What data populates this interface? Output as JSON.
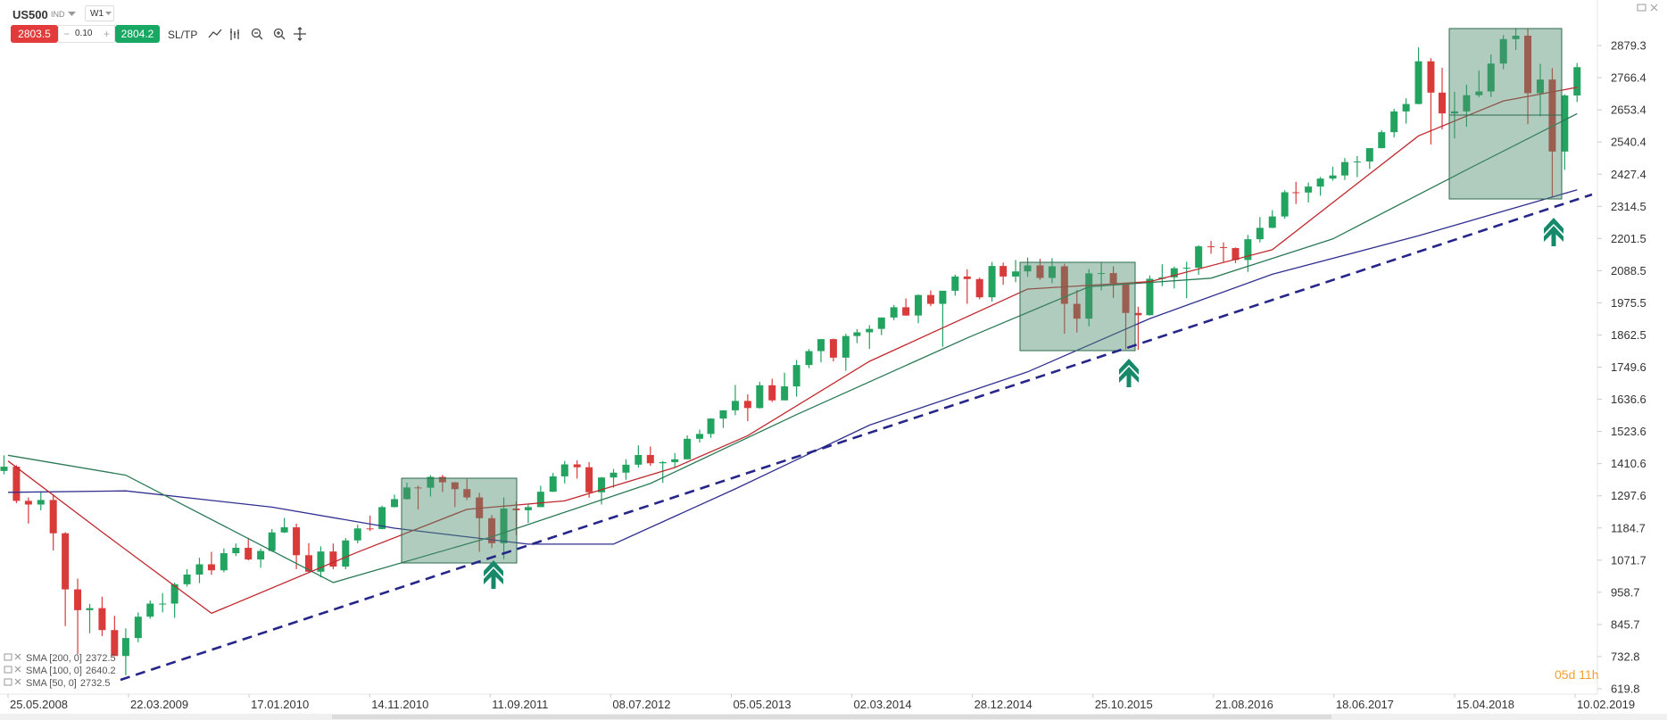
{
  "toolbar": {
    "symbol": "US500",
    "market": "IND",
    "timeframe": "W1",
    "sell": 2803.5,
    "volume": "0.10",
    "buy": 2804.2,
    "sltp": "SL/TP"
  },
  "countdown": "05d 11h",
  "chart_data": {
    "type": "candlestick",
    "log_scale": false,
    "grid": false,
    "up_color": "#22a35f",
    "down_color": "#d93a3a",
    "x": [
      "15.05.2008",
      "15.06.2008",
      "15.07.2008",
      "15.08.2008",
      "15.09.2008",
      "15.10.2008",
      "15.11.2008",
      "15.12.2008",
      "15.01.2009",
      "15.02.2009",
      "15.03.2009",
      "15.04.2009",
      "15.05.2009",
      "15.06.2009",
      "15.07.2009",
      "15.08.2009",
      "15.09.2009",
      "15.10.2009",
      "15.11.2009",
      "15.12.2009",
      "15.01.2010",
      "15.02.2010",
      "15.03.2010",
      "15.04.2010",
      "15.05.2010",
      "15.06.2010",
      "15.07.2010",
      "15.08.2010",
      "15.09.2010",
      "15.10.2010",
      "15.11.2010",
      "15.12.2010",
      "15.01.2011",
      "15.02.2011",
      "15.03.2011",
      "15.04.2011",
      "15.05.2011",
      "15.06.2011",
      "15.07.2011",
      "15.08.2011",
      "15.09.2011",
      "15.10.2011",
      "15.11.2011",
      "15.12.2011",
      "15.01.2012",
      "15.02.2012",
      "15.03.2012",
      "15.04.2012",
      "15.05.2012",
      "15.06.2012",
      "15.07.2012",
      "15.08.2012",
      "15.09.2012",
      "15.10.2012",
      "15.11.2012",
      "15.12.2012",
      "15.01.2013",
      "15.02.2013",
      "15.03.2013",
      "15.04.2013",
      "15.05.2013",
      "15.06.2013",
      "15.07.2013",
      "15.08.2013",
      "15.09.2013",
      "15.10.2013",
      "15.11.2013",
      "15.12.2013",
      "15.01.2014",
      "15.02.2014",
      "15.03.2014",
      "15.04.2014",
      "15.05.2014",
      "15.06.2014",
      "15.07.2014",
      "15.08.2014",
      "15.09.2014",
      "15.10.2014",
      "15.11.2014",
      "15.12.2014",
      "15.01.2015",
      "15.02.2015",
      "15.03.2015",
      "15.04.2015",
      "15.05.2015",
      "15.06.2015",
      "15.07.2015",
      "15.08.2015",
      "15.09.2015",
      "15.10.2015",
      "15.11.2015",
      "15.12.2015",
      "15.01.2016",
      "15.02.2016",
      "15.03.2016",
      "15.04.2016",
      "15.05.2016",
      "15.06.2016",
      "15.07.2016",
      "15.08.2016",
      "15.09.2016",
      "15.10.2016",
      "15.11.2016",
      "15.12.2016",
      "15.01.2017",
      "15.02.2017",
      "15.03.2017",
      "15.04.2017",
      "15.05.2017",
      "15.06.2017",
      "15.07.2017",
      "15.08.2017",
      "15.09.2017",
      "15.10.2017",
      "15.11.2017",
      "15.12.2017",
      "15.01.2018",
      "15.02.2018",
      "15.03.2018",
      "15.04.2018",
      "15.05.2018",
      "15.06.2018",
      "15.07.2018",
      "15.08.2018",
      "15.09.2018",
      "15.10.2018",
      "15.11.2018",
      "15.12.2018",
      "15.01.2019",
      "15.02.2019"
    ],
    "open": [
      1385,
      1400,
      1280,
      1267,
      1283,
      1166,
      969,
      896,
      903,
      826,
      735,
      798,
      873,
      919,
      919,
      987,
      1021,
      1057,
      1036,
      1096,
      1115,
      1074,
      1104,
      1169,
      1187,
      1089,
      1031,
      1102,
      1049,
      1141,
      1183,
      1181,
      1258,
      1286,
      1327,
      1326,
      1364,
      1345,
      1321,
      1292,
      1219,
      1131,
      1253,
      1247,
      1258,
      1312,
      1366,
      1408,
      1398,
      1310,
      1362,
      1379,
      1407,
      1441,
      1412,
      1416,
      1426,
      1498,
      1515,
      1569,
      1598,
      1631,
      1606,
      1686,
      1633,
      1682,
      1757,
      1806,
      1848,
      1783,
      1859,
      1872,
      1884,
      1924,
      1960,
      1931,
      2003,
      1972,
      2018,
      2068,
      2059,
      1995,
      2105,
      2068,
      2086,
      2107,
      2063,
      2104,
      1972,
      1920,
      2079,
      2080,
      2044,
      1940,
      1932,
      2060,
      2065,
      2097,
      2099,
      2174,
      2171,
      2168,
      2126,
      2199,
      2239,
      2279,
      2364,
      2363,
      2384,
      2412,
      2423,
      2470,
      2472,
      2519,
      2575,
      2648,
      2674,
      2824,
      2714,
      2641,
      2648,
      2705,
      2718,
      2816,
      2902,
      2914,
      2712,
      2760,
      2507,
      2704
    ],
    "high": [
      1440,
      1405,
      1292,
      1313,
      1303,
      1170,
      1007,
      918,
      943,
      876,
      832,
      888,
      930,
      956,
      993,
      1040,
      1080,
      1101,
      1113,
      1130,
      1150,
      1112,
      1181,
      1220,
      1200,
      1131,
      1120,
      1130,
      1149,
      1196,
      1228,
      1263,
      1302,
      1344,
      1333,
      1370,
      1371,
      1346,
      1357,
      1308,
      1230,
      1292,
      1278,
      1270,
      1333,
      1378,
      1420,
      1422,
      1416,
      1364,
      1392,
      1426,
      1475,
      1471,
      1420,
      1448,
      1510,
      1530,
      1570,
      1598,
      1687,
      1654,
      1698,
      1709,
      1730,
      1775,
      1813,
      1849,
      1850,
      1867,
      1883,
      1897,
      1924,
      1968,
      1991,
      2005,
      2019,
      2018,
      2075,
      2093,
      2064,
      2119,
      2117,
      2126,
      2135,
      2130,
      2132,
      2113,
      2021,
      2094,
      2116,
      2104,
      2044,
      1962,
      2072,
      2111,
      2103,
      2120,
      2178,
      2193,
      2188,
      2170,
      2214,
      2277,
      2301,
      2371,
      2401,
      2398,
      2418,
      2454,
      2484,
      2491,
      2519,
      2582,
      2657,
      2694,
      2873,
      2835,
      2801,
      2717,
      2742,
      2791,
      2848,
      2916,
      2941,
      2940,
      2815,
      2800,
      2708,
      2818
    ],
    "low": [
      1373,
      1272,
      1200,
      1247,
      1106,
      840,
      741,
      815,
      805,
      735,
      667,
      783,
      866,
      888,
      869,
      979,
      991,
      1020,
      1029,
      1086,
      1071,
      1045,
      1101,
      1167,
      1040,
      1028,
      1011,
      1040,
      1040,
      1131,
      1174,
      1180,
      1257,
      1284,
      1250,
      1295,
      1311,
      1258,
      1283,
      1101,
      1114,
      1075,
      1159,
      1202,
      1258,
      1311,
      1341,
      1358,
      1291,
      1267,
      1326,
      1354,
      1397,
      1403,
      1343,
      1398,
      1426,
      1485,
      1501,
      1536,
      1581,
      1560,
      1604,
      1627,
      1633,
      1646,
      1746,
      1767,
      1770,
      1737,
      1834,
      1814,
      1862,
      1915,
      1930,
      1904,
      1964,
      1821,
      2001,
      1972,
      1988,
      1980,
      2039,
      2048,
      2067,
      2056,
      2044,
      1867,
      1871,
      1893,
      2019,
      1993,
      1812,
      1810,
      1931,
      2034,
      2026,
      1992,
      2074,
      2148,
      2119,
      2115,
      2084,
      2188,
      2238,
      2271,
      2323,
      2328,
      2352,
      2405,
      2407,
      2417,
      2446,
      2518,
      2557,
      2605,
      2673,
      2532,
      2585,
      2553,
      2594,
      2698,
      2698,
      2796,
      2864,
      2603,
      2631,
      2346,
      2443,
      2681
    ],
    "close": [
      1400,
      1280,
      1267,
      1283,
      1166,
      969,
      896,
      903,
      826,
      735,
      798,
      873,
      919,
      919,
      987,
      1021,
      1057,
      1036,
      1096,
      1115,
      1074,
      1104,
      1169,
      1187,
      1089,
      1031,
      1102,
      1049,
      1141,
      1183,
      1181,
      1258,
      1286,
      1327,
      1326,
      1364,
      1345,
      1321,
      1292,
      1219,
      1131,
      1253,
      1247,
      1258,
      1312,
      1366,
      1408,
      1398,
      1310,
      1362,
      1379,
      1407,
      1441,
      1412,
      1416,
      1426,
      1498,
      1515,
      1569,
      1598,
      1631,
      1606,
      1686,
      1633,
      1682,
      1757,
      1806,
      1848,
      1783,
      1859,
      1872,
      1884,
      1924,
      1960,
      1931,
      2003,
      1972,
      2018,
      2068,
      2059,
      1995,
      2105,
      2068,
      2086,
      2107,
      2063,
      2104,
      1972,
      1920,
      2079,
      2080,
      2044,
      1940,
      1932,
      2060,
      2065,
      2097,
      2099,
      2174,
      2171,
      2168,
      2126,
      2199,
      2239,
      2279,
      2364,
      2363,
      2384,
      2412,
      2423,
      2470,
      2472,
      2519,
      2575,
      2648,
      2674,
      2824,
      2714,
      2641,
      2648,
      2705,
      2718,
      2816,
      2902,
      2914,
      2712,
      2760,
      2507,
      2704,
      2803.5
    ],
    "overlays": [
      {
        "name": "SMA [200, 0]",
        "color": "#2f2f8f",
        "x": [
          "25.05.2008",
          "15.03.2009",
          "15.03.2010",
          "15.01.2011",
          "15.12.2011",
          "15.07.2012",
          "15.05.2013",
          "15.04.2014",
          "15.05.2015",
          "15.03.2016",
          "15.01.2017",
          "15.01.2018",
          "15.02.2019"
        ],
        "values": [
          1310,
          1315,
          1258,
          1184,
          1128,
          1128,
          1322,
          1546,
          1733,
          1920,
          2076,
          2211,
          2372.5
        ]
      },
      {
        "name": "SMA [100, 0]",
        "color": "#2b7a55",
        "x": [
          "25.05.2008",
          "15.03.2009",
          "15.12.2009",
          "15.08.2010",
          "15.09.2011",
          "15.10.2012",
          "15.10.2013",
          "15.12.2014",
          "15.10.2015",
          "15.08.2016",
          "15.06.2017",
          "15.05.2018",
          "15.02.2019"
        ],
        "values": [
          1440,
          1370,
          1170,
          993,
          1154,
          1341,
          1583,
          1852,
          2032,
          2062,
          2200,
          2443,
          2640.2
        ]
      },
      {
        "name": "SMA [50, 0]",
        "color": "#c0282d",
        "x": [
          "25.05.2008",
          "15.01.2009",
          "15.10.2009",
          "15.10.2010",
          "15.07.2011",
          "15.03.2012",
          "15.12.2012",
          "15.06.2013",
          "15.04.2014",
          "15.05.2015",
          "15.03.2016",
          "15.01.2017",
          "15.01.2018",
          "15.08.2018",
          "15.02.2019"
        ],
        "values": [
          1420,
          1170,
          885,
          1100,
          1250,
          1280,
          1397,
          1509,
          1770,
          2024,
          2050,
          2162,
          2562,
          2685,
          2732.5
        ]
      }
    ],
    "xlim": [
      "05.05.2008",
      "31.03.2019"
    ],
    "xticks": [
      "25.05.2008",
      "22.03.2009",
      "17.01.2010",
      "14.11.2010",
      "11.09.2011",
      "08.07.2012",
      "05.05.2013",
      "02.03.2014",
      "28.12.2014",
      "25.10.2015",
      "21.08.2016",
      "18.06.2017",
      "15.04.2018",
      "10.02.2019"
    ],
    "ylim": [
      601,
      3008
    ],
    "yticks": [
      2879.3,
      2766.4,
      2653.4,
      2540.4,
      2427.4,
      2314.5,
      2201.5,
      2088.5,
      1975.5,
      1862.5,
      1749.6,
      1636.6,
      1523.6,
      1410.6,
      1297.6,
      1184.7,
      1071.7,
      958.7,
      845.7,
      732.8,
      619.8
    ]
  }
}
